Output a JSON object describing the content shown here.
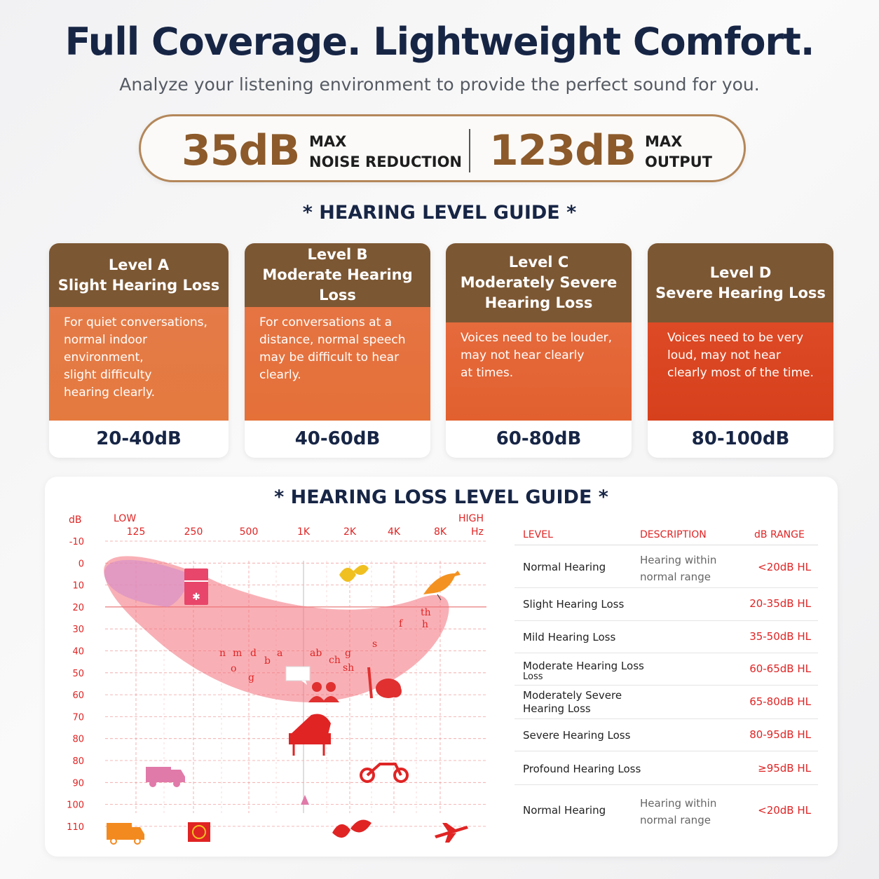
{
  "header": {
    "title": "Full Coverage. Lightweight Comfort.",
    "subtitle": "Analyze your listening environment to provide the perfect sound for you."
  },
  "stats": [
    {
      "value": "35dB",
      "label_line1": "MAX",
      "label_line2": "NOISE REDUCTION"
    },
    {
      "value": "123dB",
      "label_line1": "MAX",
      "label_line2": "OUTPUT"
    }
  ],
  "hearing_level_guide": {
    "title": "* HEARING LEVEL GUIDE *",
    "cards": [
      {
        "level": "Level A",
        "name": "Slight Hearing Loss",
        "desc_lines": [
          "For quiet conversations,",
          "normal indoor environment,",
          "slight difficulty",
          "hearing clearly."
        ],
        "range": "20-40dB"
      },
      {
        "level": "Level B",
        "name": "Moderate Hearing Loss",
        "desc_lines": [
          "For conversations at a",
          "distance, normal speech",
          "may be difficult to hear",
          "clearly."
        ],
        "range": "40-60dB"
      },
      {
        "level": "Level C",
        "name_line1": "Moderately Severe",
        "name_line2": "Hearing Loss",
        "desc_lines": [
          "Voices need to be louder,",
          "may not hear clearly",
          "at times."
        ],
        "range": "60-80dB"
      },
      {
        "level": "Level D",
        "name": "Severe Hearing Loss",
        "desc_lines": [
          "Voices need to be very",
          "loud, may not hear",
          "clearly most of the time."
        ],
        "range": "80-100dB"
      }
    ]
  },
  "hearing_loss_guide": {
    "title": "* HEARING LOSS LEVEL GUIDE *",
    "audiogram": {
      "y_unit": "dB",
      "low_label": "LOW",
      "high_label": "HIGH",
      "x_unit": "Hz",
      "freq_labels": [
        "125",
        "250",
        "500",
        "1K",
        "2K",
        "4K",
        "8K"
      ],
      "db_labels": [
        "-10",
        "0",
        "10",
        "20",
        "30",
        "40",
        "50",
        "60",
        "70",
        "80",
        "80",
        "90",
        "100",
        "110"
      ],
      "speech_sounds": [
        "th",
        "f",
        "h",
        "s",
        "n",
        "m",
        "d",
        "a",
        "b",
        "o",
        "g",
        "ab",
        "ch",
        "g",
        "sh"
      ],
      "icon_names": [
        "refrigerator-icon",
        "leaves-icon",
        "bird-icon",
        "speech-bubble-icon",
        "people-icon",
        "vacuum-icon",
        "piano-icon",
        "van-icon",
        "motorcycle-icon",
        "siren-icon",
        "truck-icon",
        "alarm-icon",
        "leaves-icon",
        "airplane-icon"
      ],
      "accent": "#e02424"
    },
    "table": {
      "headers": {
        "level": "LEVEL",
        "description": "DESCRIPTION",
        "range": "dB RANGE"
      },
      "rows": [
        {
          "level": "Normal Hearing",
          "desc_line1": "Hearing within",
          "desc_line2": "normal range",
          "range": "<20dB HL"
        },
        {
          "level": "Slight Hearing Loss",
          "range": "20-35dB HL"
        },
        {
          "level": "Mild Hearing Loss",
          "range": "35-50dB HL"
        },
        {
          "level_line1": "Moderate Hearing Loss",
          "level_line2": "Loss",
          "range": "60-65dB HL"
        },
        {
          "level_line1": "Moderately Severe",
          "level_line2": "Hearing Loss",
          "range": "65-80dB HL"
        },
        {
          "level": "Severe Hearing Loss",
          "range": "80-95dB HL"
        },
        {
          "level": "Profound Hearing Loss",
          "range": "≥95dB HL"
        },
        {
          "level": "Normal Hearing",
          "desc_line1": "Hearing within",
          "desc_line2": "normal range",
          "range": "<20dB HL"
        }
      ]
    }
  }
}
